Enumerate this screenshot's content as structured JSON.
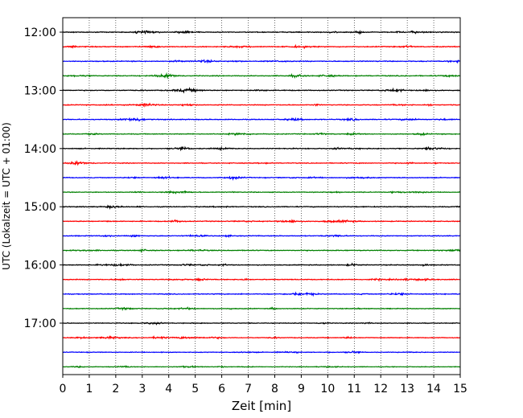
{
  "chart_data": {
    "type": "line",
    "title": "",
    "xlabel": "Zeit  [min]",
    "ylabel": "UTC (Lokalzeit = UTC + 01:00)",
    "xlim": [
      0,
      15
    ],
    "x_ticks": [
      "0",
      "1",
      "2",
      "3",
      "4",
      "5",
      "6",
      "7",
      "8",
      "9",
      "10",
      "11",
      "12",
      "13",
      "14",
      "15"
    ],
    "y_ticks": [
      "12:00",
      "13:00",
      "14:00",
      "15:00",
      "16:00",
      "17:00"
    ],
    "grid": "vertical dotted at each minute",
    "trace_interval_minutes": 15,
    "start_time": "12:00",
    "trace_count": 24,
    "trace_colors": [
      "#000000",
      "#ff0000",
      "#0000ff",
      "#008000"
    ],
    "trace_amplitude_minutes": [
      0.12,
      0.12,
      0.12,
      0.12,
      0.12,
      0.11,
      0.12,
      0.11,
      0.12,
      0.11,
      0.11,
      0.1,
      0.12,
      0.11,
      0.11,
      0.11,
      0.11,
      0.11,
      0.11,
      0.1,
      0.1,
      0.1,
      0.09,
      0.08
    ]
  }
}
